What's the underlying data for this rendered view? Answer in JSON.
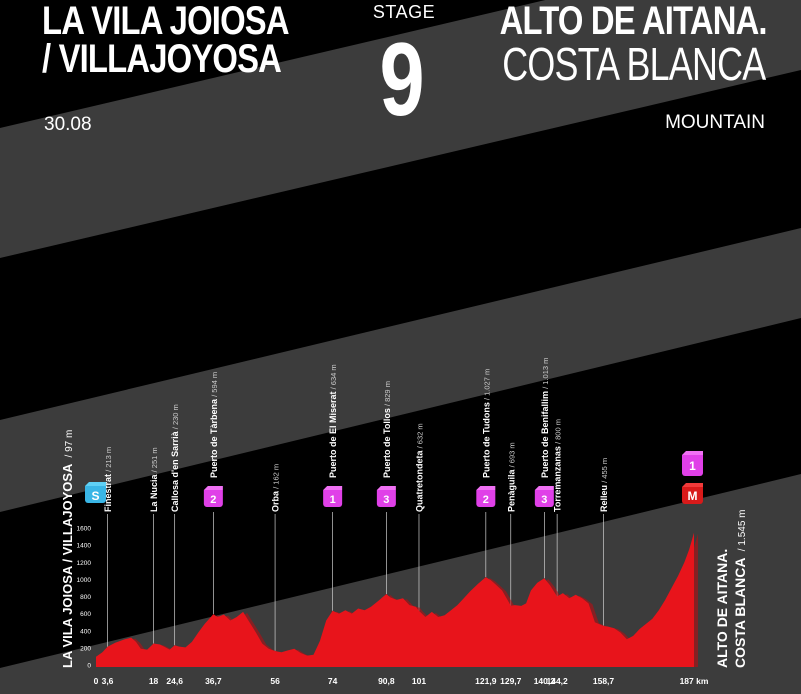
{
  "header": {
    "start_line1": "LA VILA JOIOSA",
    "start_line2": "/ VILLAJOYOSA",
    "date": "30.08",
    "stage_label": "STAGE",
    "stage_number": "9",
    "finish_line1": "ALTO DE AITANA.",
    "finish_line2": "COSTA BLANCA",
    "stage_type": "MOUNTAIN"
  },
  "colors": {
    "background": "#000000",
    "band": "#3c3c3c",
    "profile": "#e8141b",
    "profile_dark": "#b80d12",
    "kom_marker": "#e040e8",
    "start_marker": "#3ab6e6",
    "finish_marker": "#d81a1a"
  },
  "profile": {
    "start": {
      "name": "LA VILA JOIOSA / VILLAJOYOSA",
      "alt": "97 m",
      "marker": "S"
    },
    "finish": {
      "name_line1": "ALTO DE AITANA.",
      "name_line2": "COSTA BLANCA",
      "alt": "1.545 m",
      "marker_top": "1",
      "marker_bottom": "M"
    },
    "y_ticks": [
      "1600",
      "1400",
      "1200",
      "1000",
      "800",
      "600",
      "400",
      "200",
      "0"
    ],
    "km_labels": [
      "0",
      "3,6",
      "18",
      "24,6",
      "36,7",
      "56",
      "74",
      "90,8",
      "101",
      "121,9",
      "129,7",
      "140,2",
      "144,2",
      "158,7",
      "187 km"
    ],
    "km_values": [
      0,
      3.6,
      18,
      24.6,
      36.7,
      56,
      74,
      90.8,
      101,
      121.9,
      129.7,
      140.2,
      144.2,
      158.7,
      187
    ],
    "waypoints": [
      {
        "name": "Finestrat",
        "alt": "213 m",
        "km": 3.6,
        "cat": ""
      },
      {
        "name": "La Nucia",
        "alt": "251 m",
        "km": 18,
        "cat": ""
      },
      {
        "name": "Callosa d'en Sarrià",
        "alt": "230 m",
        "km": 24.6,
        "cat": ""
      },
      {
        "name": "Puerto de Tàrbena",
        "alt": "594 m",
        "km": 36.7,
        "cat": "2"
      },
      {
        "name": "Orba",
        "alt": "162 m",
        "km": 56,
        "cat": ""
      },
      {
        "name": "Puerto de El Miserat",
        "alt": "634 m",
        "km": 74,
        "cat": "1"
      },
      {
        "name": "Puerto de Tollos",
        "alt": "829 m",
        "km": 90.8,
        "cat": "3"
      },
      {
        "name": "Quatretondeta",
        "alt": "632 m",
        "km": 101,
        "cat": ""
      },
      {
        "name": "Puerto de Tudons",
        "alt": "1.027 m",
        "km": 121.9,
        "cat": "2"
      },
      {
        "name": "Penàguila",
        "alt": "693 m",
        "km": 129.7,
        "cat": ""
      },
      {
        "name": "Puerto de Benifallim",
        "alt": "1.013 m",
        "km": 140.2,
        "cat": "3"
      },
      {
        "name": "Torremanzanas",
        "alt": "800 m",
        "km": 144.2,
        "cat": ""
      },
      {
        "name": "Relleu",
        "alt": "455 m",
        "km": 158.7,
        "cat": ""
      }
    ]
  }
}
